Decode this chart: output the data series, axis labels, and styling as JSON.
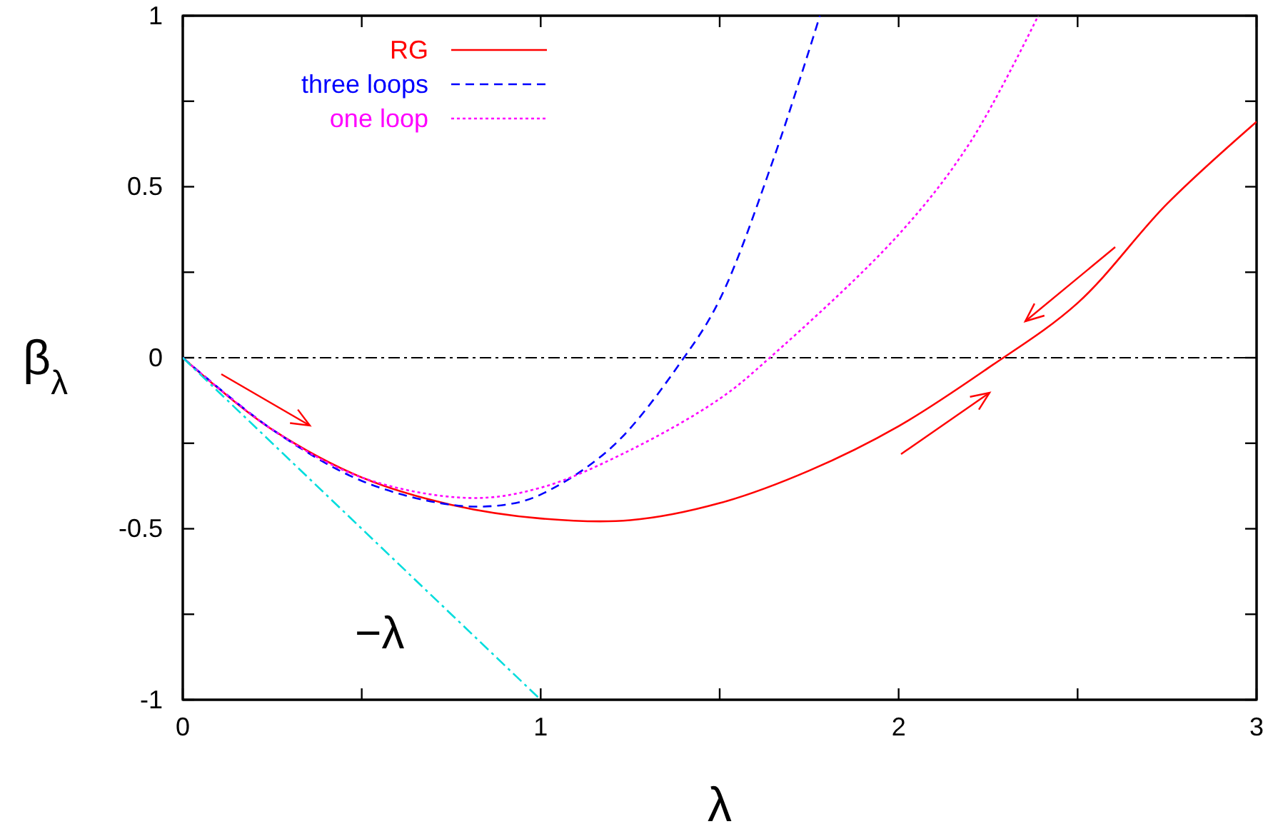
{
  "chart_data": {
    "type": "line",
    "xlabel": "λ",
    "ylabel": "β$_{λ}$",
    "xlim": [
      0,
      3
    ],
    "ylim": [
      -1,
      1
    ],
    "xticks": [
      0,
      {
        "value": 0.5,
        "label": null
      },
      1,
      {
        "value": 1.5,
        "label": null
      },
      2,
      {
        "value": 2.5,
        "label": null
      },
      3
    ],
    "yticks": [
      -1,
      {
        "value": -0.75,
        "label": null
      },
      -0.5,
      {
        "value": -0.25,
        "label": null
      },
      0,
      {
        "value": 0.25,
        "label": null
      },
      0.5,
      {
        "value": 0.75,
        "label": null
      },
      1
    ],
    "legend": "top left",
    "grid": false,
    "series": [
      {
        "name": "RG",
        "color": "#ff0000",
        "line_style": "solid",
        "x": [
          0,
          0.1,
          0.25,
          0.5,
          0.75,
          1,
          1.25,
          1.5,
          1.75,
          2,
          2.25,
          2.5,
          2.75,
          3
        ],
        "values": [
          0,
          -0.09,
          -0.21,
          -0.35,
          -0.43,
          -0.47,
          -0.475,
          -0.425,
          -0.33,
          -0.2,
          -0.03,
          0.16,
          0.45,
          0.69
        ]
      },
      {
        "name": "three loops",
        "color": "#0000ff",
        "line_style": "dashed",
        "x": [
          0,
          0.25,
          0.5,
          0.75,
          0.9,
          1,
          1.2,
          1.4,
          1.5,
          1.65,
          1.78
        ],
        "values": [
          0,
          -0.21,
          -0.36,
          -0.43,
          -0.43,
          -0.4,
          -0.26,
          0,
          0.17,
          0.58,
          1
        ]
      },
      {
        "name": "one loop",
        "color": "#ff00ff",
        "line_style": "dotted",
        "x": [
          0,
          0.25,
          0.5,
          0.8,
          1,
          1.25,
          1.5,
          1.64,
          2,
          2.2,
          2.39
        ],
        "values": [
          0,
          -0.21,
          -0.35,
          -0.41,
          -0.38,
          -0.27,
          -0.12,
          0,
          0.36,
          0.63,
          1
        ]
      },
      {
        "color": "#00dddd",
        "line_style": "dashdot",
        "x": [
          0,
          1
        ],
        "values": [
          0,
          -1
        ]
      }
    ],
    "ref_lines": [
      {
        "axis": "y",
        "value": 0,
        "color": "#000000",
        "line_style": "dashdot"
      }
    ],
    "annotations": [
      "−λ"
    ]
  }
}
